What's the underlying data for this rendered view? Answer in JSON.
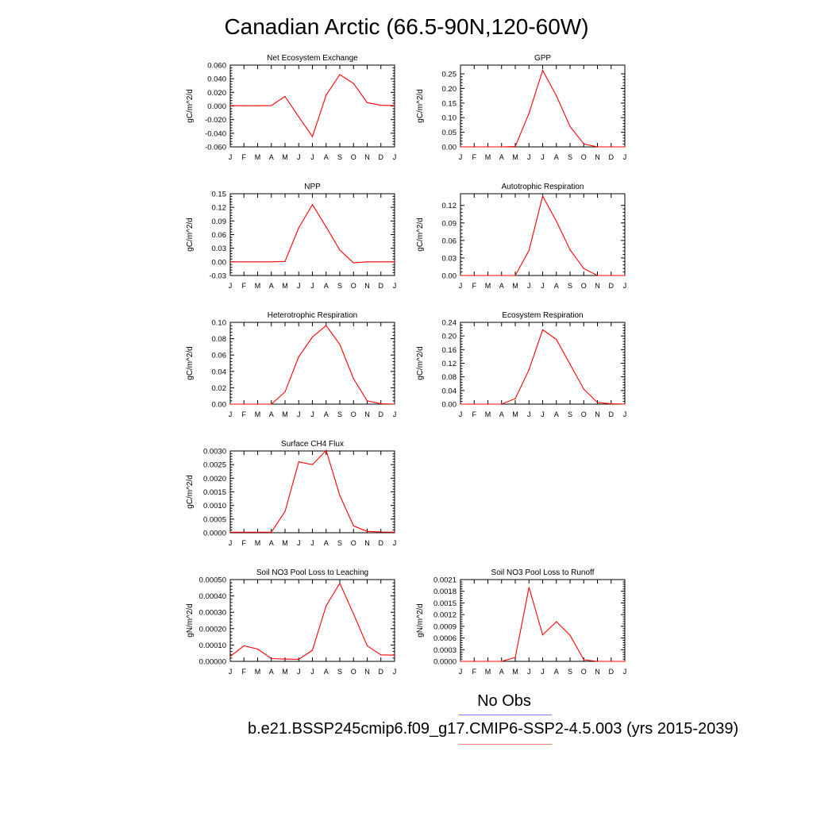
{
  "title": "Canadian Arctic (66.5-90N,120-60W)",
  "legend": {
    "obs_label": "No Obs",
    "case_label": "b.e21.BSSP245cmip6.f09_g17.CMIP6-SSP2-4.5.003 (yrs 2015-2039)",
    "obs_color": "#7a7aff",
    "case_color": "#ff7a7a"
  },
  "colors": {
    "line": "#ff0000",
    "axis": "#000000"
  },
  "chart_data": [
    {
      "type": "line",
      "title": "Net Ecosystem Exchange",
      "ylabel": "gC/m^2/d",
      "categories": [
        "J",
        "F",
        "M",
        "A",
        "M",
        "J",
        "J",
        "A",
        "S",
        "O",
        "N",
        "D",
        "J"
      ],
      "yticks": [
        "0.060",
        "0.040",
        "0.020",
        "0.000",
        "-0.020",
        "-0.040",
        "-0.060"
      ],
      "ylim": [
        -0.06,
        0.06
      ],
      "values": [
        0.0005,
        0.0003,
        0.0003,
        0.0007,
        0.014,
        -0.016,
        -0.045,
        0.016,
        0.046,
        0.033,
        0.005,
        0.001,
        0.0005
      ]
    },
    {
      "type": "line",
      "title": "GPP",
      "ylabel": "gC/m^2/d",
      "categories": [
        "J",
        "F",
        "M",
        "A",
        "M",
        "J",
        "J",
        "A",
        "S",
        "O",
        "N",
        "D",
        "J"
      ],
      "yticks": [
        "0.25",
        "0.20",
        "0.15",
        "0.10",
        "0.05",
        "0.00"
      ],
      "ylim": [
        0,
        0.28
      ],
      "values": [
        0,
        0,
        0,
        0,
        0.001,
        0.115,
        0.262,
        0.175,
        0.07,
        0.01,
        0,
        0,
        0
      ]
    },
    {
      "type": "line",
      "title": "NPP",
      "ylabel": "gC/m^2/d",
      "categories": [
        "J",
        "F",
        "M",
        "A",
        "M",
        "J",
        "J",
        "A",
        "S",
        "O",
        "N",
        "D",
        "J"
      ],
      "yticks": [
        "0.15",
        "0.12",
        "0.09",
        "0.06",
        "0.03",
        "0.00",
        "-0.03"
      ],
      "ylim": [
        -0.03,
        0.15
      ],
      "values": [
        0,
        0,
        0,
        0,
        0.001,
        0.075,
        0.126,
        0.077,
        0.026,
        -0.002,
        0,
        0,
        0
      ]
    },
    {
      "type": "line",
      "title": "Autotrophic Respiration",
      "ylabel": "gC/m^2/d",
      "categories": [
        "J",
        "F",
        "M",
        "A",
        "M",
        "J",
        "J",
        "A",
        "S",
        "O",
        "N",
        "D",
        "J"
      ],
      "yticks": [
        "0.12",
        "0.09",
        "0.06",
        "0.03",
        "0.00"
      ],
      "ylim": [
        0,
        0.14
      ],
      "values": [
        0,
        0,
        0,
        0,
        0,
        0.043,
        0.136,
        0.093,
        0.044,
        0.012,
        0,
        0,
        0
      ]
    },
    {
      "type": "line",
      "title": "Heterotrophic Respiration",
      "ylabel": "gC/m^2/d",
      "categories": [
        "J",
        "F",
        "M",
        "A",
        "M",
        "J",
        "J",
        "A",
        "S",
        "O",
        "N",
        "D",
        "J"
      ],
      "yticks": [
        "0.10",
        "0.08",
        "0.06",
        "0.04",
        "0.02",
        "0.00"
      ],
      "ylim": [
        0,
        0.1
      ],
      "values": [
        0,
        0,
        0,
        0,
        0.015,
        0.058,
        0.082,
        0.096,
        0.073,
        0.031,
        0.004,
        0.0005,
        0
      ]
    },
    {
      "type": "line",
      "title": "Ecosystem Respiration",
      "ylabel": "gC/m^2/d",
      "categories": [
        "J",
        "F",
        "M",
        "A",
        "M",
        "J",
        "J",
        "A",
        "S",
        "O",
        "N",
        "D",
        "J"
      ],
      "yticks": [
        "0.24",
        "0.20",
        "0.16",
        "0.12",
        "0.08",
        "0.04",
        "0.00"
      ],
      "ylim": [
        0,
        0.24
      ],
      "values": [
        0,
        0,
        0,
        0,
        0.016,
        0.101,
        0.218,
        0.19,
        0.117,
        0.044,
        0.005,
        0.001,
        0
      ]
    },
    {
      "type": "line",
      "title": "Surface CH4 Flux",
      "ylabel": "gC/m^2/d",
      "categories": [
        "J",
        "F",
        "M",
        "A",
        "M",
        "J",
        "J",
        "A",
        "S",
        "O",
        "N",
        "D",
        "J"
      ],
      "yticks": [
        "0.0030",
        "0.0025",
        "0.0020",
        "0.0015",
        "0.0010",
        "0.0005",
        "0.0000"
      ],
      "ylim": [
        0,
        0.003
      ],
      "values": [
        2e-05,
        2e-05,
        2e-05,
        2e-05,
        0.00078,
        0.0026,
        0.0025,
        0.00302,
        0.00137,
        0.00025,
        5e-05,
        3e-05,
        2e-05
      ]
    },
    {
      "type": "line",
      "title": "Soil NO3 Pool Loss to Leaching",
      "ylabel": "gN/m^2/d",
      "categories": [
        "J",
        "F",
        "M",
        "A",
        "M",
        "J",
        "J",
        "A",
        "S",
        "O",
        "N",
        "D",
        "J"
      ],
      "yticks": [
        "0.00050",
        "0.00040",
        "0.00030",
        "0.00020",
        "0.00010",
        "0.00000"
      ],
      "ylim": [
        0,
        0.0005
      ],
      "values": [
        3e-05,
        9.5e-05,
        7.5e-05,
        1.7e-05,
        1.4e-05,
        1.2e-05,
        6.8e-05,
        0.00034,
        0.000478,
        0.00029,
        9.5e-05,
        4e-05,
        3.8e-05
      ]
    },
    {
      "type": "line",
      "title": "Soil NO3 Pool Loss to Runoff",
      "ylabel": "gN/m^2/d",
      "categories": [
        "J",
        "F",
        "M",
        "A",
        "M",
        "J",
        "J",
        "A",
        "S",
        "O",
        "N",
        "D",
        "J"
      ],
      "yticks": [
        "0.0021",
        "0.0018",
        "0.0015",
        "0.0012",
        "0.0009",
        "0.0006",
        "0.0003",
        "0.0000"
      ],
      "ylim": [
        0,
        0.0021
      ],
      "values": [
        0,
        0,
        0,
        0,
        0.0001,
        0.0019,
        0.00068,
        0.00102,
        0.00067,
        4e-05,
        0,
        0,
        0
      ]
    }
  ]
}
